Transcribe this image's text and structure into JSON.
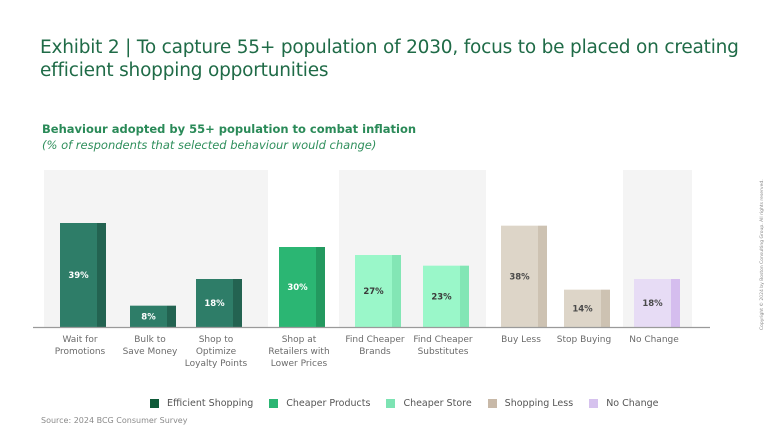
{
  "title": {
    "line1": "Exhibit 2 | To capture 55+ population of 2030, focus to be placed on creating",
    "line2": "efficient shopping opportunities"
  },
  "subtitle": {
    "main": "Behaviour adopted by 55+ population to combat inflation",
    "note": "(% of respondents that selected behaviour would change)"
  },
  "legend": [
    {
      "name": "Efficient Shopping",
      "color": "#0e5a38"
    },
    {
      "name": "Cheaper Products",
      "color": "#2bb673"
    },
    {
      "name": "Cheaper Store",
      "color": "#7de3b3"
    },
    {
      "name": "Shopping Less",
      "color": "#c8b9a8"
    },
    {
      "name": "No Change",
      "color": "#d6c2ee"
    }
  ],
  "source": "Source: 2024 BCG Consumer Survey",
  "copyright": "Copyright © 2024 by Boston Consulting Group. All rights reserved.",
  "chart_data": {
    "type": "bar",
    "title": "Behaviour adopted by 55+ population to combat inflation",
    "subtitle": "(% of respondents that selected behaviour would change)",
    "xlabel": "",
    "ylabel": "% of respondents",
    "ylim": [
      0,
      45
    ],
    "grid": false,
    "legend_position": "bottom",
    "value_suffix": "%",
    "categories": [
      [
        "Wait for",
        "Promotions"
      ],
      [
        "Bulk to",
        "Save Money"
      ],
      [
        "Shop to",
        "Optimize",
        "Loyalty Points"
      ],
      [
        "Shop at",
        "Retailers with",
        "Lower Prices"
      ],
      [
        "Find Cheaper",
        "Brands"
      ],
      [
        "Find Cheaper",
        "Substitutes"
      ],
      [
        "Buy Less"
      ],
      [
        "Stop Buying"
      ],
      [
        "No Change"
      ]
    ],
    "values": [
      39,
      8,
      18,
      30,
      27,
      23,
      38,
      14,
      18
    ],
    "groups": [
      "Efficient Shopping",
      "Efficient Shopping",
      "Efficient Shopping",
      "Cheaper Products",
      "Cheaper Store",
      "Cheaper Store",
      "Shopping Less",
      "Shopping Less",
      "No Change"
    ],
    "group_styles": {
      "Efficient Shopping": {
        "front": "#2e7d68",
        "side": "#236351",
        "label": "#ffffff",
        "panel": true
      },
      "Cheaper Products": {
        "front": "#2bb673",
        "side": "#23995f",
        "label": "#ffffff",
        "panel": false
      },
      "Cheaper Store": {
        "front": "#9af7c9",
        "side": "#83e6b5",
        "label": "#3a3a3a",
        "panel": true
      },
      "Shopping Less": {
        "front": "#ddd5c8",
        "side": "#cdc2b2",
        "label": "#4a4a4a",
        "panel": false
      },
      "No Change": {
        "front": "#e7dcf5",
        "side": "#d5bdee",
        "label": "#4a4a4a",
        "panel": true
      }
    }
  }
}
